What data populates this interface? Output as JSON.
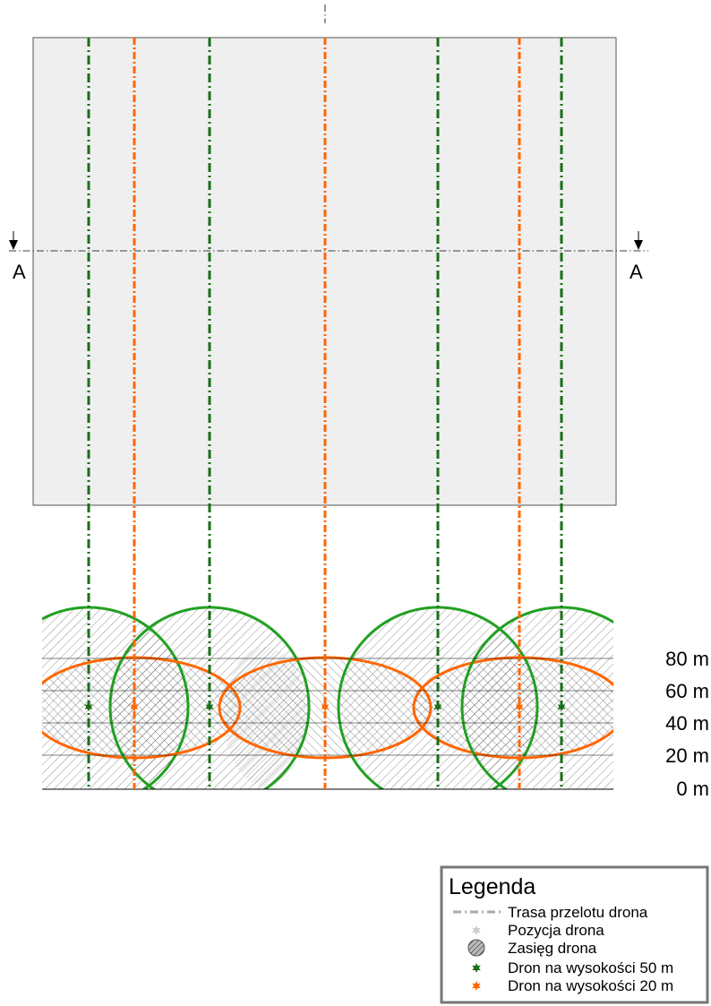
{
  "section": {
    "marker": "A",
    "title": "A-A"
  },
  "height_axis": {
    "unit": "m",
    "ticks": [
      "80 m",
      "60 m",
      "40 m",
      "20 m",
      "0 m"
    ]
  },
  "drones": [
    {
      "group": "50m",
      "color": "#1a6e1a"
    },
    {
      "group": "20m",
      "color": "#ff6600"
    },
    {
      "group": "50m",
      "color": "#1a6e1a"
    },
    {
      "group": "20m",
      "color": "#ff6600"
    },
    {
      "group": "50m",
      "color": "#1a6e1a"
    },
    {
      "group": "20m",
      "color": "#ff6600"
    },
    {
      "group": "50m",
      "color": "#1a6e1a"
    }
  ],
  "colors": {
    "green_route": "#1a6e1a",
    "green_range": "#22a022",
    "orange": "#ff6600",
    "area_fill": "#efefef",
    "legend_border": "#777777"
  },
  "legend": {
    "title": "Legenda",
    "items": [
      {
        "label": "Trasa przelotu drona",
        "symbol": "dash-dot-line-icon"
      },
      {
        "label": "Pozycja drona",
        "symbol": "gray-star-icon"
      },
      {
        "label": "Zasięg drona",
        "symbol": "hatched-circle-icon"
      },
      {
        "label": "Dron na wysokości 50 m",
        "symbol": "green-star-icon"
      },
      {
        "label": "Dron na wysokości 20 m",
        "symbol": "orange-star-icon"
      }
    ]
  }
}
